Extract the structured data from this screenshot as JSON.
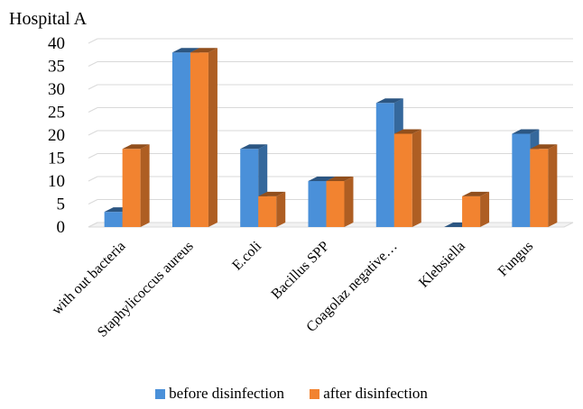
{
  "chart_data": {
    "type": "bar",
    "title": "Hospital A",
    "categories": [
      "with out bacteria",
      "Staphylicoccus aureus",
      "E.coli",
      "Bacillus SPP",
      "Coagolaz negative…",
      "Klebsiella",
      "Fungus"
    ],
    "series": [
      {
        "name": "before disinfection",
        "values": [
          3.3,
          38,
          17,
          10,
          27,
          0,
          20.3
        ],
        "color": "#4A90D9"
      },
      {
        "name": "after disinfection",
        "values": [
          17,
          38,
          6.7,
          10,
          20.3,
          6.7,
          17
        ],
        "color": "#F28330"
      }
    ],
    "xlabel": "",
    "ylabel": "",
    "ylim": [
      0,
      40
    ],
    "yticks": [
      0,
      5,
      10,
      15,
      20,
      25,
      30,
      35,
      40
    ],
    "grid": true,
    "legend": "bottom",
    "style": "3d-clustered-column"
  }
}
